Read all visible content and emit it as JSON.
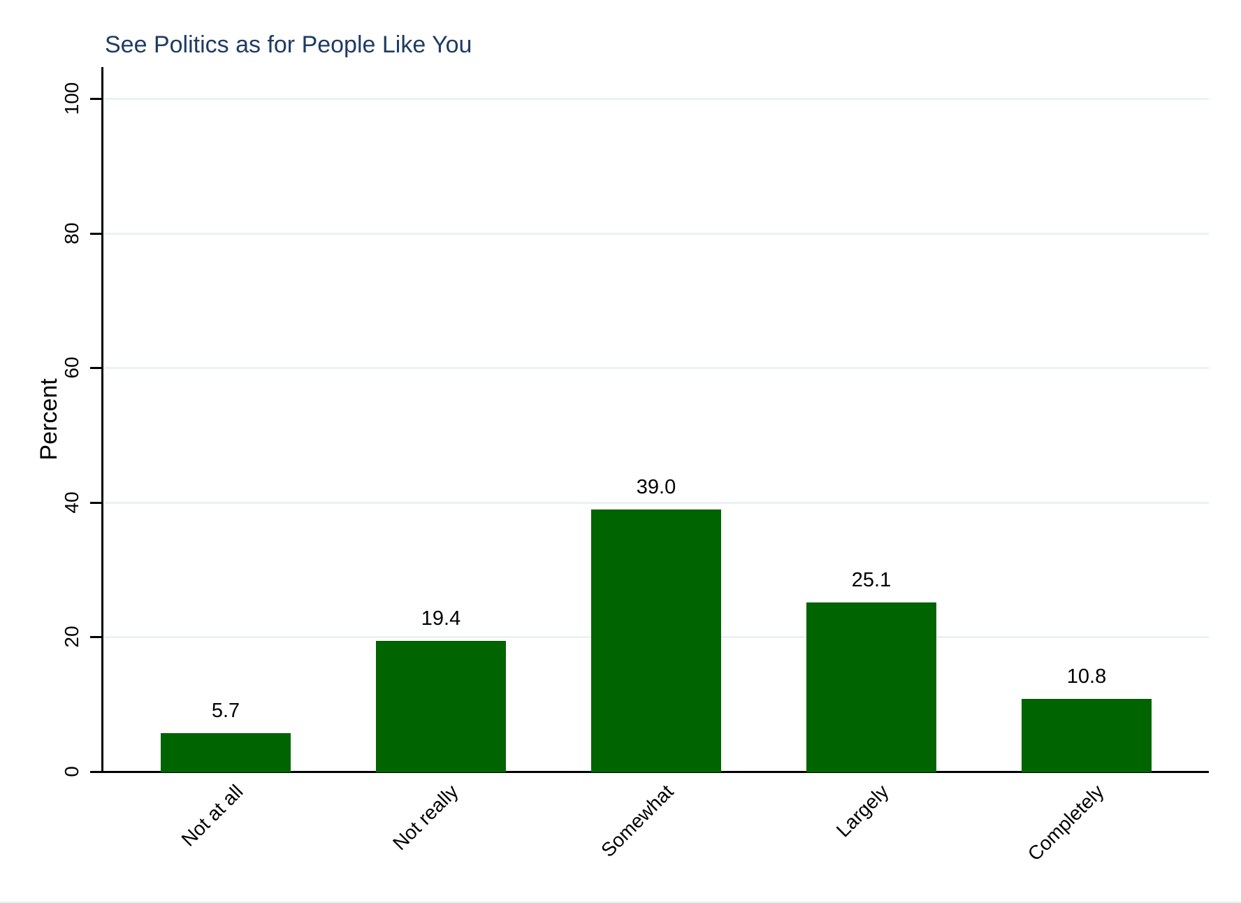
{
  "chart_data": {
    "type": "bar",
    "title": "See Politics as for People Like You",
    "ylabel": "Percent",
    "xlabel": "",
    "categories": [
      "Not at all",
      "Not really",
      "Somewhat",
      "Largely",
      "Completely"
    ],
    "values": [
      5.7,
      19.4,
      39.0,
      25.1,
      10.8
    ],
    "value_labels": [
      "5.7",
      "19.4",
      "39.0",
      "25.1",
      "10.8"
    ],
    "ylim": [
      0,
      100
    ],
    "yticks": [
      0,
      20,
      40,
      60,
      80,
      100
    ],
    "grid": true,
    "legend": "none",
    "colors": {
      "bar": "#006400",
      "bar_border": "#005500",
      "gridline": "#eaf2f3",
      "axis": "#000000",
      "title_text": "#1e3c63",
      "label_text": "#000000",
      "background": "#ffffff",
      "bottom_edge": "#e9eef2"
    }
  }
}
